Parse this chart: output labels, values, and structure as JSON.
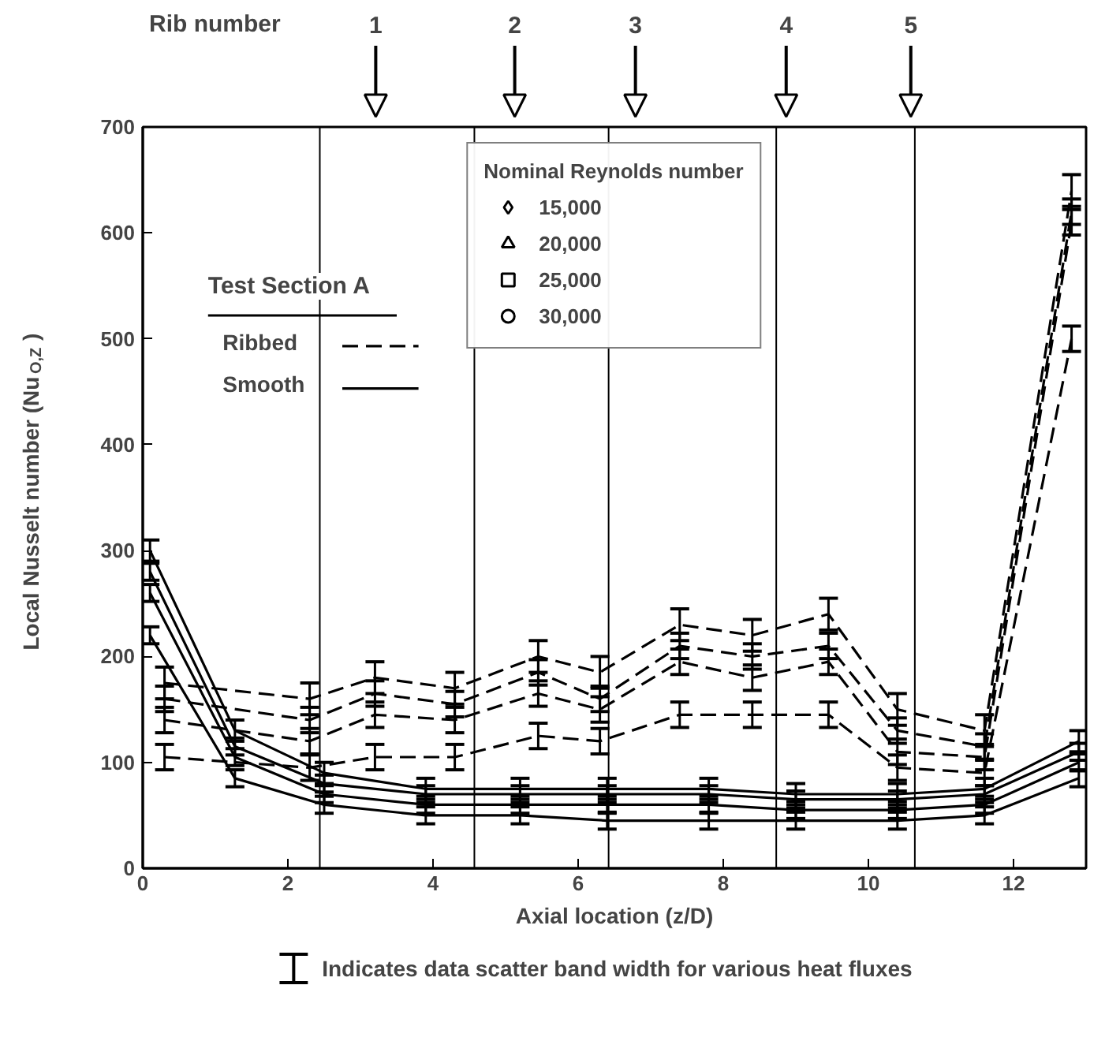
{
  "chart_data": {
    "type": "line",
    "xlabel": "Axial location (z/D)",
    "ylabel": "Local Nusselt number (Nu$_{O,Z}$)",
    "legend_title": "Nominal Reynolds number",
    "legend": "top",
    "xlim": [
      0,
      13
    ],
    "ylim": [
      0,
      700
    ],
    "xticks": [
      0,
      2,
      4,
      6,
      8,
      10,
      12
    ],
    "yticks": [
      0,
      100,
      200,
      300,
      400,
      500,
      600,
      700
    ],
    "grid": false,
    "series": [
      {
        "name": "15,000",
        "color": "#000000",
        "line_style": "dashed",
        "x": [
          0.3,
          2.3,
          3.2,
          4.3,
          5.45,
          6.3,
          7.4,
          8.4,
          9.45,
          10.4,
          11.6,
          12.8
        ],
        "values": [
          105,
          95,
          105,
          105,
          125,
          120,
          145,
          145,
          145,
          95,
          90,
          500
        ],
        "errors": [
          12,
          12,
          12,
          12,
          12,
          12,
          12,
          12,
          12,
          12,
          12,
          12
        ]
      },
      {
        "name": "20,000",
        "color": "#000000",
        "line_style": "dashed",
        "x": [
          0.3,
          2.3,
          3.2,
          4.3,
          5.45,
          6.3,
          7.4,
          8.4,
          9.45,
          10.4,
          11.6,
          12.8
        ],
        "values": [
          140,
          120,
          145,
          140,
          165,
          150,
          195,
          180,
          195,
          110,
          105,
          610
        ],
        "errors": [
          12,
          12,
          12,
          12,
          12,
          12,
          12,
          12,
          12,
          12,
          12,
          12
        ]
      },
      {
        "name": "25,000",
        "color": "#000000",
        "line_style": "dashed",
        "x": [
          0.3,
          2.3,
          3.2,
          4.3,
          5.45,
          6.3,
          7.4,
          8.4,
          9.45,
          10.4,
          11.6,
          12.8
        ],
        "values": [
          160,
          140,
          165,
          155,
          185,
          160,
          210,
          200,
          210,
          130,
          115,
          620
        ],
        "errors": [
          12,
          12,
          12,
          12,
          12,
          12,
          12,
          12,
          12,
          12,
          12,
          12
        ]
      },
      {
        "name": "30,000",
        "color": "#000000",
        "line_style": "dashed",
        "x": [
          0.3,
          2.3,
          3.2,
          4.3,
          5.45,
          6.3,
          7.4,
          8.4,
          9.45,
          10.4,
          11.6,
          12.8
        ],
        "values": [
          175,
          160,
          180,
          170,
          200,
          185,
          230,
          220,
          240,
          150,
          130,
          640
        ],
        "errors": [
          15,
          15,
          15,
          15,
          15,
          15,
          15,
          15,
          15,
          15,
          15,
          15
        ]
      },
      {
        "color": "#000000",
        "line_style": "solid",
        "x": [
          0.1,
          1.27,
          2.5,
          3.9,
          5.2,
          6.4,
          7.8,
          9.0,
          10.4,
          11.6,
          12.9
        ],
        "values": [
          220,
          85,
          60,
          50,
          50,
          45,
          45,
          45,
          45,
          50,
          85
        ],
        "errors": [
          8,
          8,
          8,
          8,
          8,
          8,
          8,
          8,
          8,
          8,
          8
        ]
      },
      {
        "color": "#000000",
        "line_style": "solid",
        "x": [
          0.1,
          1.27,
          2.5,
          3.9,
          5.2,
          6.4,
          7.8,
          9.0,
          10.4,
          11.6,
          12.9
        ],
        "values": [
          260,
          105,
          70,
          60,
          60,
          60,
          60,
          55,
          55,
          60,
          100
        ],
        "errors": [
          8,
          8,
          8,
          8,
          8,
          8,
          8,
          8,
          8,
          8,
          8
        ]
      },
      {
        "color": "#000000",
        "line_style": "solid",
        "x": [
          0.1,
          1.27,
          2.5,
          3.9,
          5.2,
          6.4,
          7.8,
          9.0,
          10.4,
          11.6,
          12.9
        ],
        "values": [
          280,
          115,
          80,
          70,
          70,
          70,
          70,
          65,
          65,
          70,
          110
        ],
        "errors": [
          8,
          8,
          8,
          8,
          8,
          8,
          8,
          8,
          8,
          8,
          8
        ]
      },
      {
        "color": "#000000",
        "line_style": "solid",
        "x": [
          0.1,
          1.27,
          2.5,
          3.9,
          5.2,
          6.4,
          7.8,
          9.0,
          10.4,
          11.6,
          12.9
        ],
        "values": [
          300,
          130,
          90,
          75,
          75,
          75,
          75,
          70,
          70,
          75,
          120
        ],
        "errors": [
          10,
          10,
          10,
          10,
          10,
          10,
          10,
          10,
          10,
          10,
          10
        ]
      }
    ],
    "ref_lines": [
      {
        "axis": "x",
        "value": 2.44
      },
      {
        "axis": "x",
        "value": 4.57
      },
      {
        "axis": "x",
        "value": 6.42
      },
      {
        "axis": "x",
        "value": 8.73
      },
      {
        "axis": "x",
        "value": 10.64
      }
    ],
    "annotations": [
      "Test Section A",
      "Ribbed",
      "Smooth",
      "Rib number",
      "Indicates data scatter band width for various heat fluxes",
      "1",
      "2",
      "3",
      "4",
      "5"
    ]
  }
}
